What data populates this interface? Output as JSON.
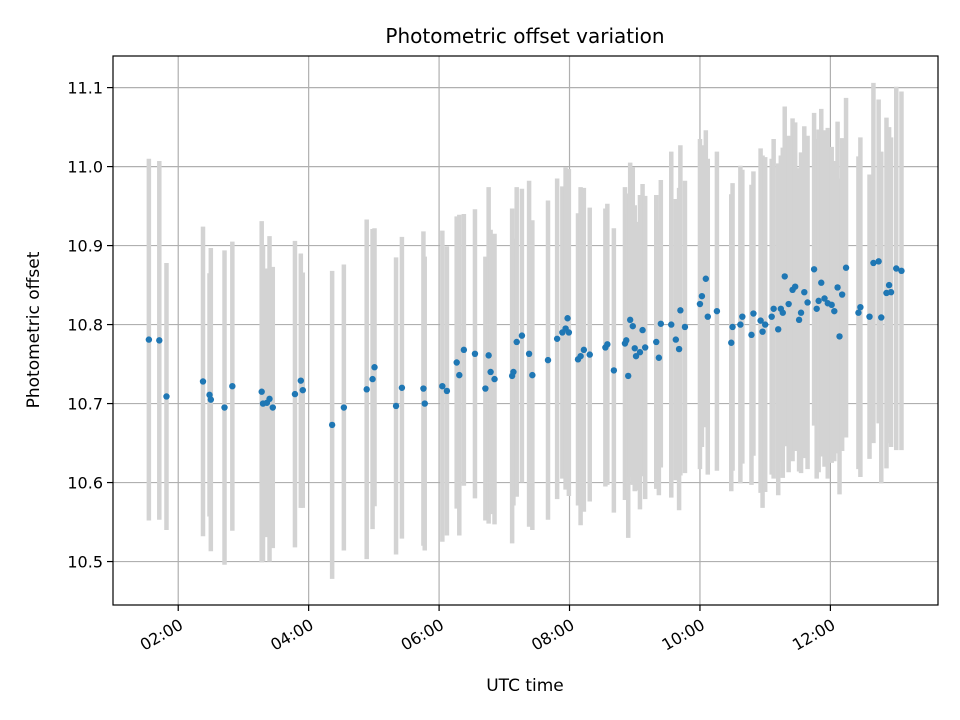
{
  "chart_data": {
    "type": "scatter",
    "title": "Photometric offset variation",
    "xlabel": "UTC time",
    "ylabel": "Photometric offset",
    "x_unit": "hours UTC",
    "xlim": [
      1.0,
      13.65
    ],
    "ylim": [
      10.445,
      11.14
    ],
    "x_ticks": [
      {
        "value": 2,
        "label": "02:00"
      },
      {
        "value": 4,
        "label": "04:00"
      },
      {
        "value": 6,
        "label": "06:00"
      },
      {
        "value": 8,
        "label": "08:00"
      },
      {
        "value": 10,
        "label": "10:00"
      },
      {
        "value": 12,
        "label": "12:00"
      }
    ],
    "y_ticks": [
      {
        "value": 10.5,
        "label": "10.5"
      },
      {
        "value": 10.6,
        "label": "10.6"
      },
      {
        "value": 10.7,
        "label": "10.7"
      },
      {
        "value": 10.8,
        "label": "10.8"
      },
      {
        "value": 10.9,
        "label": "10.9"
      },
      {
        "value": 11.0,
        "label": "11.0"
      },
      {
        "value": 11.1,
        "label": "11.1"
      }
    ],
    "grid": true,
    "point_color": "#1f77b4",
    "errorbar_color": "#d3d3d3",
    "points": [
      {
        "x": 1.55,
        "y": 10.781,
        "yerr": 0.229
      },
      {
        "x": 1.71,
        "y": 10.78,
        "yerr": 0.227
      },
      {
        "x": 1.82,
        "y": 10.709,
        "yerr": 0.169
      },
      {
        "x": 2.38,
        "y": 10.728,
        "yerr": 0.196
      },
      {
        "x": 2.48,
        "y": 10.711,
        "yerr": 0.154
      },
      {
        "x": 2.5,
        "y": 10.705,
        "yerr": 0.192
      },
      {
        "x": 2.71,
        "y": 10.695,
        "yerr": 0.199
      },
      {
        "x": 2.83,
        "y": 10.722,
        "yerr": 0.183
      },
      {
        "x": 3.28,
        "y": 10.715,
        "yerr": 0.216
      },
      {
        "x": 3.3,
        "y": 10.7,
        "yerr": 0.2
      },
      {
        "x": 3.36,
        "y": 10.701,
        "yerr": 0.17
      },
      {
        "x": 3.4,
        "y": 10.706,
        "yerr": 0.206
      },
      {
        "x": 3.45,
        "y": 10.695,
        "yerr": 0.178
      },
      {
        "x": 3.79,
        "y": 10.712,
        "yerr": 0.194
      },
      {
        "x": 3.88,
        "y": 10.729,
        "yerr": 0.161
      },
      {
        "x": 3.91,
        "y": 10.717,
        "yerr": 0.149
      },
      {
        "x": 4.36,
        "y": 10.673,
        "yerr": 0.195
      },
      {
        "x": 4.54,
        "y": 10.695,
        "yerr": 0.181
      },
      {
        "x": 4.89,
        "y": 10.718,
        "yerr": 0.215
      },
      {
        "x": 4.98,
        "y": 10.731,
        "yerr": 0.19
      },
      {
        "x": 5.01,
        "y": 10.746,
        "yerr": 0.176
      },
      {
        "x": 5.34,
        "y": 10.697,
        "yerr": 0.188
      },
      {
        "x": 5.43,
        "y": 10.72,
        "yerr": 0.191
      },
      {
        "x": 5.76,
        "y": 10.719,
        "yerr": 0.199
      },
      {
        "x": 5.78,
        "y": 10.7,
        "yerr": 0.186
      },
      {
        "x": 6.05,
        "y": 10.722,
        "yerr": 0.197
      },
      {
        "x": 6.12,
        "y": 10.716,
        "yerr": 0.183
      },
      {
        "x": 6.27,
        "y": 10.752,
        "yerr": 0.185
      },
      {
        "x": 6.31,
        "y": 10.736,
        "yerr": 0.203
      },
      {
        "x": 6.38,
        "y": 10.768,
        "yerr": 0.172
      },
      {
        "x": 6.55,
        "y": 10.763,
        "yerr": 0.183
      },
      {
        "x": 6.71,
        "y": 10.719,
        "yerr": 0.167
      },
      {
        "x": 6.76,
        "y": 10.761,
        "yerr": 0.213
      },
      {
        "x": 6.79,
        "y": 10.74,
        "yerr": 0.18
      },
      {
        "x": 6.85,
        "y": 10.731,
        "yerr": 0.184
      },
      {
        "x": 7.12,
        "y": 10.735,
        "yerr": 0.212
      },
      {
        "x": 7.14,
        "y": 10.74,
        "yerr": 0.169
      },
      {
        "x": 7.19,
        "y": 10.778,
        "yerr": 0.196
      },
      {
        "x": 7.27,
        "y": 10.786,
        "yerr": 0.186
      },
      {
        "x": 7.38,
        "y": 10.763,
        "yerr": 0.219
      },
      {
        "x": 7.43,
        "y": 10.736,
        "yerr": 0.196
      },
      {
        "x": 7.67,
        "y": 10.755,
        "yerr": 0.202
      },
      {
        "x": 7.81,
        "y": 10.782,
        "yerr": 0.203
      },
      {
        "x": 7.89,
        "y": 10.79,
        "yerr": 0.185
      },
      {
        "x": 7.94,
        "y": 10.795,
        "yerr": 0.204
      },
      {
        "x": 7.97,
        "y": 10.808,
        "yerr": 0.182
      },
      {
        "x": 7.99,
        "y": 10.79,
        "yerr": 0.207
      },
      {
        "x": 8.13,
        "y": 10.756,
        "yerr": 0.185
      },
      {
        "x": 8.17,
        "y": 10.76,
        "yerr": 0.214
      },
      {
        "x": 8.22,
        "y": 10.768,
        "yerr": 0.205
      },
      {
        "x": 8.31,
        "y": 10.762,
        "yerr": 0.186
      },
      {
        "x": 8.55,
        "y": 10.771,
        "yerr": 0.176
      },
      {
        "x": 8.58,
        "y": 10.775,
        "yerr": 0.178
      },
      {
        "x": 8.68,
        "y": 10.742,
        "yerr": 0.18
      },
      {
        "x": 8.85,
        "y": 10.776,
        "yerr": 0.198
      },
      {
        "x": 8.87,
        "y": 10.78,
        "yerr": 0.186
      },
      {
        "x": 8.9,
        "y": 10.735,
        "yerr": 0.205
      },
      {
        "x": 8.93,
        "y": 10.806,
        "yerr": 0.199
      },
      {
        "x": 8.97,
        "y": 10.798,
        "yerr": 0.201
      },
      {
        "x": 9.0,
        "y": 10.77,
        "yerr": 0.181
      },
      {
        "x": 9.02,
        "y": 10.76,
        "yerr": 0.17
      },
      {
        "x": 9.08,
        "y": 10.765,
        "yerr": 0.199
      },
      {
        "x": 9.12,
        "y": 10.793,
        "yerr": 0.185
      },
      {
        "x": 9.16,
        "y": 10.771,
        "yerr": 0.192
      },
      {
        "x": 9.33,
        "y": 10.778,
        "yerr": 0.186
      },
      {
        "x": 9.37,
        "y": 10.758,
        "yerr": 0.174
      },
      {
        "x": 9.4,
        "y": 10.801,
        "yerr": 0.182
      },
      {
        "x": 9.56,
        "y": 10.8,
        "yerr": 0.219
      },
      {
        "x": 9.63,
        "y": 10.781,
        "yerr": 0.178
      },
      {
        "x": 9.7,
        "y": 10.818,
        "yerr": 0.209
      },
      {
        "x": 9.77,
        "y": 10.797,
        "yerr": 0.185
      },
      {
        "x": 9.68,
        "y": 10.769,
        "yerr": 0.204
      },
      {
        "x": 10.0,
        "y": 10.826,
        "yerr": 0.209
      },
      {
        "x": 10.03,
        "y": 10.836,
        "yerr": 0.191
      },
      {
        "x": 10.09,
        "y": 10.858,
        "yerr": 0.188
      },
      {
        "x": 10.12,
        "y": 10.81,
        "yerr": 0.2
      },
      {
        "x": 10.26,
        "y": 10.817,
        "yerr": 0.202
      },
      {
        "x": 10.48,
        "y": 10.777,
        "yerr": 0.188
      },
      {
        "x": 10.5,
        "y": 10.797,
        "yerr": 0.182
      },
      {
        "x": 10.62,
        "y": 10.8,
        "yerr": 0.201
      },
      {
        "x": 10.65,
        "y": 10.81,
        "yerr": 0.186
      },
      {
        "x": 10.79,
        "y": 10.787,
        "yerr": 0.19
      },
      {
        "x": 10.82,
        "y": 10.814,
        "yerr": 0.18
      },
      {
        "x": 10.93,
        "y": 10.805,
        "yerr": 0.218
      },
      {
        "x": 10.96,
        "y": 10.791,
        "yerr": 0.223
      },
      {
        "x": 11.0,
        "y": 10.8,
        "yerr": 0.212
      },
      {
        "x": 11.1,
        "y": 10.81,
        "yerr": 0.2
      },
      {
        "x": 11.13,
        "y": 10.82,
        "yerr": 0.215
      },
      {
        "x": 11.2,
        "y": 10.794,
        "yerr": 0.21
      },
      {
        "x": 11.24,
        "y": 10.82,
        "yerr": 0.194
      },
      {
        "x": 11.27,
        "y": 10.815,
        "yerr": 0.209
      },
      {
        "x": 11.3,
        "y": 10.861,
        "yerr": 0.215
      },
      {
        "x": 11.36,
        "y": 10.826,
        "yerr": 0.213
      },
      {
        "x": 11.42,
        "y": 10.844,
        "yerr": 0.217
      },
      {
        "x": 11.46,
        "y": 10.848,
        "yerr": 0.208
      },
      {
        "x": 11.52,
        "y": 10.806,
        "yerr": 0.192
      },
      {
        "x": 11.55,
        "y": 10.815,
        "yerr": 0.203
      },
      {
        "x": 11.6,
        "y": 10.841,
        "yerr": 0.21
      },
      {
        "x": 11.65,
        "y": 10.828,
        "yerr": 0.211
      },
      {
        "x": 11.75,
        "y": 10.87,
        "yerr": 0.198
      },
      {
        "x": 11.79,
        "y": 10.82,
        "yerr": 0.215
      },
      {
        "x": 11.82,
        "y": 10.83,
        "yerr": 0.217
      },
      {
        "x": 11.86,
        "y": 10.853,
        "yerr": 0.22
      },
      {
        "x": 11.91,
        "y": 10.833,
        "yerr": 0.213
      },
      {
        "x": 11.96,
        "y": 10.827,
        "yerr": 0.222
      },
      {
        "x": 12.02,
        "y": 10.825,
        "yerr": 0.2
      },
      {
        "x": 12.06,
        "y": 10.817,
        "yerr": 0.19
      },
      {
        "x": 12.11,
        "y": 10.847,
        "yerr": 0.21
      },
      {
        "x": 12.14,
        "y": 10.785,
        "yerr": 0.2
      },
      {
        "x": 12.18,
        "y": 10.838,
        "yerr": 0.198
      },
      {
        "x": 12.24,
        "y": 10.872,
        "yerr": 0.215
      },
      {
        "x": 12.43,
        "y": 10.815,
        "yerr": 0.198
      },
      {
        "x": 12.46,
        "y": 10.822,
        "yerr": 0.215
      },
      {
        "x": 12.6,
        "y": 10.81,
        "yerr": 0.18
      },
      {
        "x": 12.66,
        "y": 10.878,
        "yerr": 0.228
      },
      {
        "x": 12.74,
        "y": 10.88,
        "yerr": 0.205
      },
      {
        "x": 12.78,
        "y": 10.809,
        "yerr": 0.21
      },
      {
        "x": 12.86,
        "y": 10.84,
        "yerr": 0.222
      },
      {
        "x": 12.9,
        "y": 10.85,
        "yerr": 0.2
      },
      {
        "x": 12.93,
        "y": 10.841,
        "yerr": 0.196
      },
      {
        "x": 13.01,
        "y": 10.871,
        "yerr": 0.23
      },
      {
        "x": 13.09,
        "y": 10.868,
        "yerr": 0.227
      }
    ]
  }
}
